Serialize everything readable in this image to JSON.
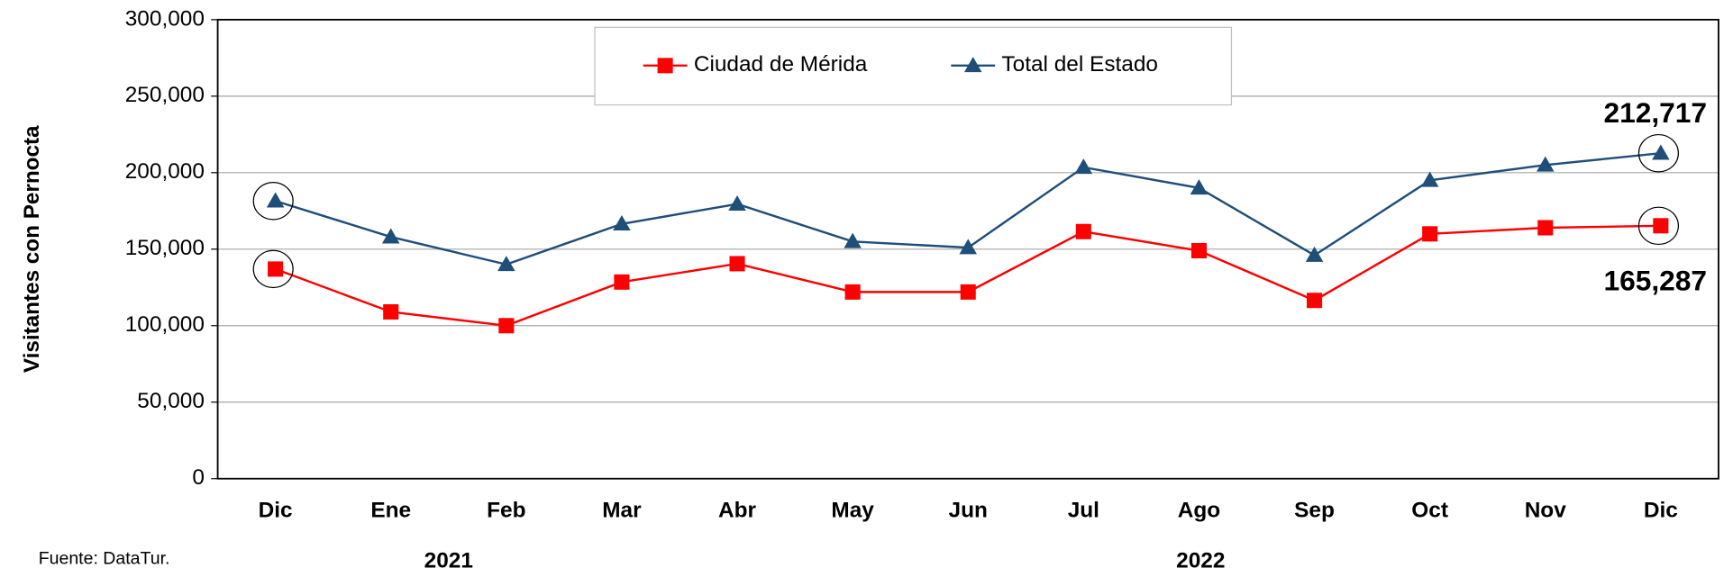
{
  "chart_data": {
    "type": "line",
    "y_label": "Visitantes con Pernocta",
    "categories": [
      "Dic",
      "Ene",
      "Feb",
      "Mar",
      "Abr",
      "May",
      "Jun",
      "Jul",
      "Ago",
      "Sep",
      "Oct",
      "Nov",
      "Dic"
    ],
    "year_labels": [
      "2021",
      "2022"
    ],
    "series": [
      {
        "name": "Ciudad de Mérida",
        "color": "#ff0000",
        "marker": "square",
        "values": [
          137000,
          109000,
          100000,
          128500,
          140500,
          122000,
          122000,
          161500,
          149000,
          116500,
          160000,
          164000,
          165287
        ],
        "value_labels": [
          null,
          null,
          null,
          null,
          null,
          null,
          null,
          null,
          null,
          null,
          null,
          null,
          "165,287"
        ]
      },
      {
        "name": "Total del Estado",
        "color": "#1f4e79",
        "marker": "triangle",
        "values": [
          181500,
          158000,
          140000,
          166500,
          179500,
          155000,
          151000,
          203500,
          190000,
          146000,
          195000,
          205000,
          212717
        ],
        "value_labels": [
          null,
          null,
          null,
          null,
          null,
          null,
          null,
          null,
          null,
          null,
          null,
          null,
          "212,717"
        ]
      }
    ],
    "ylim": [
      0,
      300000
    ],
    "yticks": [
      0,
      {
        "value": 50000,
        "label": "50,000"
      },
      {
        "value": 100000,
        "label": "100,000"
      },
      {
        "value": 150000,
        "label": "150,000"
      },
      {
        "value": 200000,
        "label": "200,000"
      },
      {
        "value": 250000,
        "label": "250,000"
      },
      {
        "value": 300000,
        "label": "300,000"
      }
    ],
    "grid": true,
    "legend": "top",
    "source": "Fuente: DataTur."
  }
}
